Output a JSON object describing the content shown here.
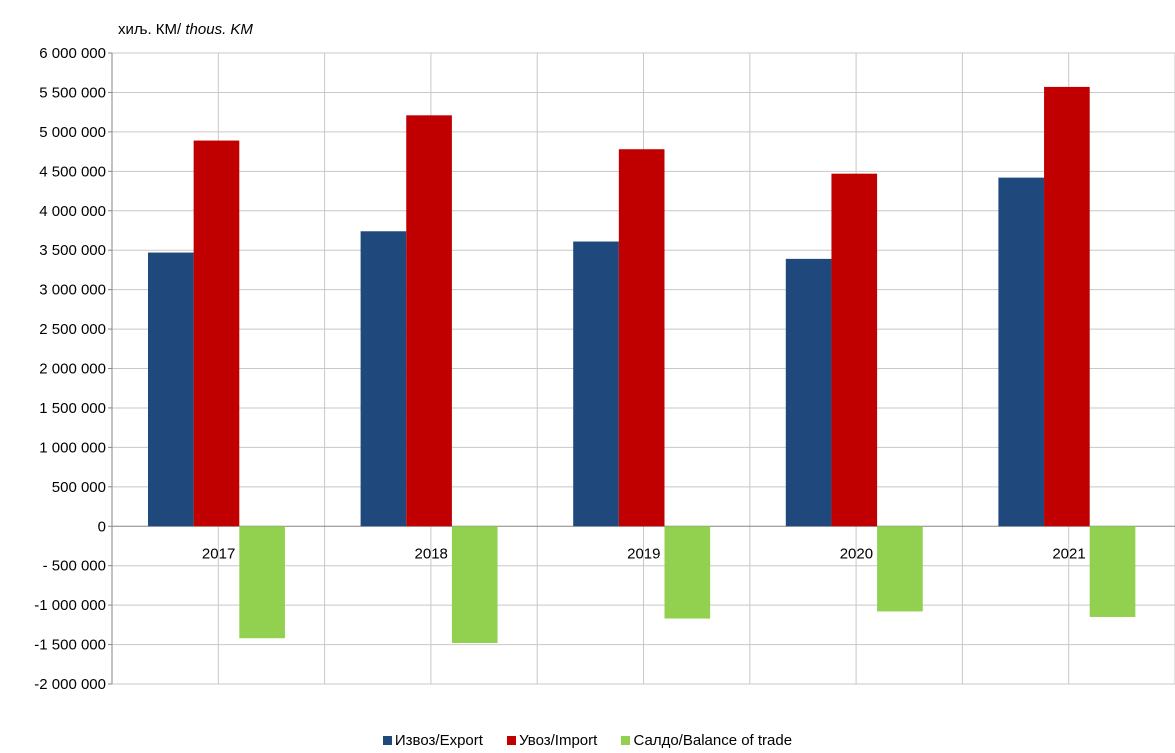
{
  "chart_data": {
    "type": "bar",
    "unit_label_prefix": "хиљ. КМ/",
    "unit_label_italic": " thous. KM",
    "categories": [
      "2017",
      "2018",
      "2019",
      "2020",
      "2021"
    ],
    "series": [
      {
        "name": "Извоз/Export",
        "color": "#1F497D",
        "values": [
          3470000,
          3740000,
          3610000,
          3390000,
          4420000
        ]
      },
      {
        "name": "Увоз/Import",
        "color": "#C00000",
        "values": [
          4890000,
          5210000,
          4780000,
          4470000,
          5570000
        ]
      },
      {
        "name": "Салдо/Balance of trade",
        "color": "#92D050",
        "values": [
          -1420000,
          -1480000,
          -1170000,
          -1080000,
          -1150000
        ]
      }
    ],
    "ylim": [
      -2000000,
      6000000
    ],
    "yticks": [
      6000000,
      5500000,
      5000000,
      4500000,
      4000000,
      3500000,
      3000000,
      2500000,
      2000000,
      1500000,
      1000000,
      500000,
      0,
      -500000,
      -1000000,
      -1500000,
      -2000000
    ],
    "ytick_labels": [
      "6 000 000",
      "5 500 000",
      "5 000 000",
      "4 500 000",
      "4 000 000",
      "3 500 000",
      "3 000 000",
      "2 500 000",
      "2 000 000",
      "1 500 000",
      "1 000 000",
      "500 000",
      "0",
      "- 500 000",
      "-1 000 000",
      "-1 500 000",
      "-2 000 000"
    ],
    "grid": true,
    "legend_position": "bottom"
  }
}
